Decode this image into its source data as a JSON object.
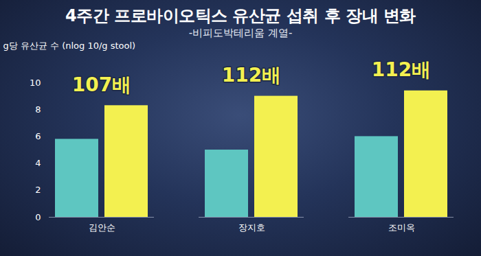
{
  "chart_data": {
    "type": "bar",
    "title": "4주간 프로바이오틱스 유산균 섭취 후 장내 변화",
    "subtitle": "-비피도박테리움 계열-",
    "y_label": "g당 유산균 수 (nlog 10/g stool)",
    "categories": [
      "김안순",
      "장지호",
      "조미옥"
    ],
    "series": [
      {
        "color": "#5ec6c1",
        "values": [
          5.8,
          5.0,
          6.0
        ]
      },
      {
        "color": "#f3f050",
        "values": [
          8.3,
          9.0,
          9.4
        ]
      }
    ],
    "annotations": [
      "107배",
      "112배",
      "112배"
    ],
    "ylim": [
      0,
      10
    ],
    "yticks": [
      0,
      2,
      4,
      6,
      8,
      10
    ]
  }
}
